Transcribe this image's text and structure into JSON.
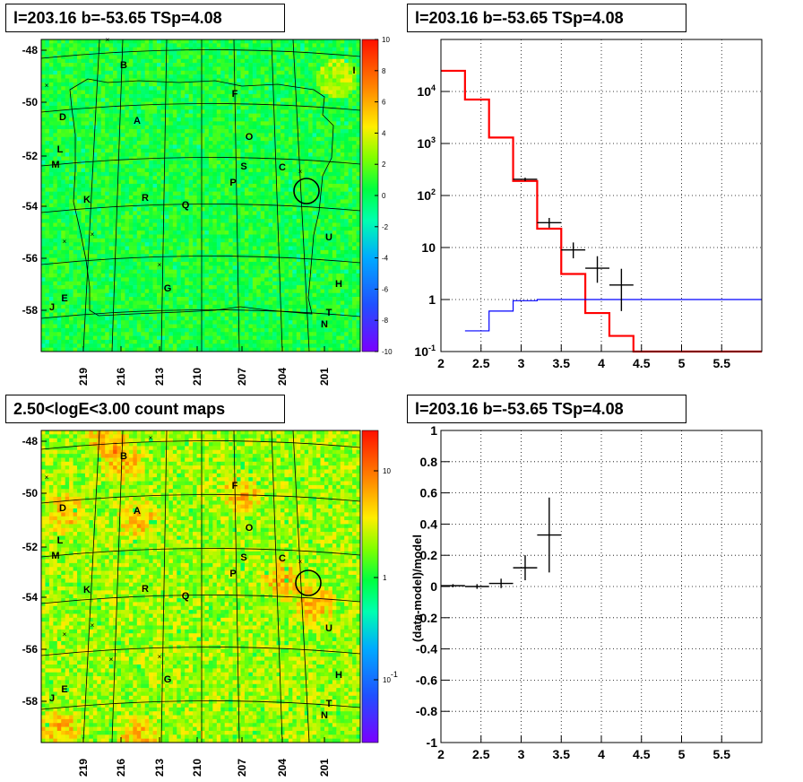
{
  "panels": {
    "tl_title": "l=203.16 b=-53.65 TSp=4.08",
    "tr_title": "l=203.16 b=-53.65 TSp=4.08",
    "bl_title": "2.50<logE<3.00 count maps",
    "br_title": "l=203.16 b=-53.65 TSp=4.08"
  },
  "chart_data": [
    {
      "type": "heatmap",
      "id": "tsmap",
      "x_ticks": [
        "219",
        "216",
        "213",
        "210",
        "207",
        "204",
        "201"
      ],
      "y_ticks": [
        "-48",
        "-50",
        "-52",
        "-54",
        "-56",
        "-58"
      ],
      "colorbar_ticks": [
        "10",
        "8",
        "6",
        "4",
        "2",
        "0",
        "-2",
        "-4",
        "-6",
        "-8",
        "-10"
      ],
      "colorbar_range": [
        -10,
        10
      ],
      "source_labels": [
        "B",
        "I",
        "D",
        "A",
        "F",
        "O",
        "L",
        "M",
        "S",
        "C",
        "P",
        "K",
        "R",
        "Q",
        "U",
        "H",
        "G",
        "E",
        "J",
        "T",
        "N"
      ]
    },
    {
      "type": "line",
      "id": "spectrum",
      "xlim": [
        2,
        6
      ],
      "x_ticks": [
        "2",
        "2.5",
        "3",
        "3.5",
        "4",
        "4.5",
        "5",
        "5.5"
      ],
      "y_scale": "log",
      "ylim": [
        0.1,
        100000
      ],
      "y_ticks": [
        "10^-1",
        "1",
        "10",
        "10^2",
        "10^3",
        "10^4"
      ],
      "series": [
        {
          "color": "#ff0000",
          "step_edges": [
            2,
            2.3,
            2.6,
            2.9,
            3.2,
            3.5,
            3.8,
            4.1,
            4.4,
            6
          ],
          "values": [
            25000,
            7000,
            1300,
            190,
            23,
            3.1,
            0.55,
            0.2,
            0.1
          ]
        },
        {
          "color": "#0000ff",
          "step_edges": [
            2.3,
            2.6,
            2.9,
            3.2,
            6
          ],
          "values": [
            0.25,
            0.6,
            0.95,
            1.0
          ]
        },
        {
          "color": "#000000",
          "points": [
            {
              "x": 3.05,
              "y": 205,
              "xerr": 0.15,
              "ylo": 190,
              "yhi": 220
            },
            {
              "x": 3.35,
              "y": 30,
              "xerr": 0.15,
              "ylo": 24,
              "yhi": 37
            },
            {
              "x": 3.65,
              "y": 9,
              "xerr": 0.15,
              "ylo": 6.2,
              "yhi": 12.5
            },
            {
              "x": 3.95,
              "y": 4,
              "xerr": 0.15,
              "ylo": 2.1,
              "yhi": 6.8
            },
            {
              "x": 4.25,
              "y": 1.9,
              "xerr": 0.15,
              "ylo": 0.6,
              "yhi": 3.9
            }
          ]
        }
      ]
    },
    {
      "type": "heatmap",
      "id": "countmap",
      "x_ticks": [
        "219",
        "216",
        "213",
        "210",
        "207",
        "204",
        "201"
      ],
      "y_ticks": [
        "-48",
        "-50",
        "-52",
        "-54",
        "-56",
        "-58"
      ],
      "colorbar_scale": "log",
      "colorbar_ticks": [
        "10",
        "1",
        "10^-1"
      ],
      "source_labels": [
        "B",
        "D",
        "A",
        "F",
        "O",
        "L",
        "M",
        "S",
        "C",
        "P",
        "K",
        "R",
        "Q",
        "U",
        "G",
        "E",
        "J",
        "H",
        "T",
        "N"
      ]
    },
    {
      "type": "scatter",
      "id": "residuals",
      "ylabel": "(data-model)/model",
      "xlim": [
        2,
        6
      ],
      "ylim": [
        -1,
        1
      ],
      "x_ticks": [
        "2",
        "2.5",
        "3",
        "3.5",
        "4",
        "4.5",
        "5",
        "5.5"
      ],
      "y_ticks": [
        "1",
        "0.8",
        "0.6",
        "0.4",
        "0.2",
        "0",
        "-0.2",
        "-0.4",
        "-0.6",
        "-0.8",
        "-1"
      ],
      "points": [
        {
          "x": 2.15,
          "y": 0.005,
          "xerr": 0.15,
          "yerr": 0.01
        },
        {
          "x": 2.45,
          "y": 0.0,
          "xerr": 0.15,
          "yerr": 0.015
        },
        {
          "x": 2.75,
          "y": 0.02,
          "xerr": 0.15,
          "yerr": 0.03
        },
        {
          "x": 3.05,
          "y": 0.12,
          "xerr": 0.15,
          "yerr": 0.08
        },
        {
          "x": 3.35,
          "y": 0.33,
          "xerr": 0.15,
          "yerr": 0.24
        }
      ]
    }
  ]
}
